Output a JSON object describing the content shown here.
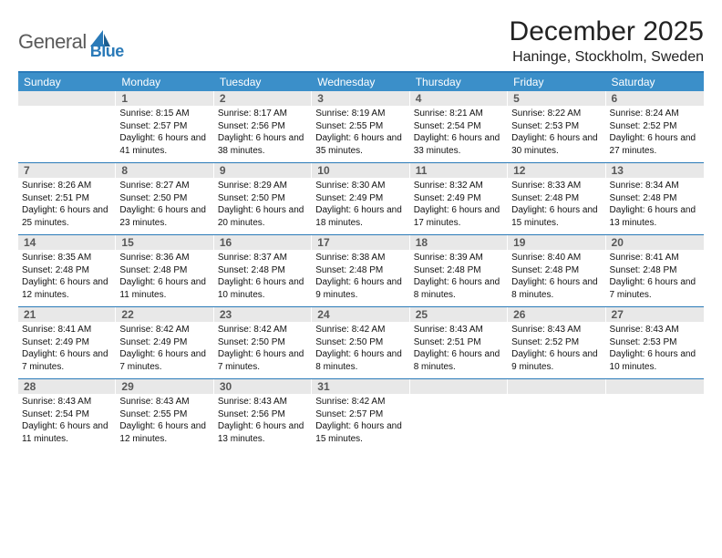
{
  "brand": {
    "general": "General",
    "blue": "Blue"
  },
  "title": "December 2025",
  "location": "Haninge, Stockholm, Sweden",
  "colors": {
    "header_bar": "#3b8fc9",
    "rule": "#2a7ab8",
    "daynum_bg": "#e8e8e8",
    "daynum_fg": "#585858",
    "text": "#111111",
    "background": "#ffffff"
  },
  "layout": {
    "columns": 7,
    "rows": 5,
    "start_day_index": 1
  },
  "daysOfWeek": [
    "Sunday",
    "Monday",
    "Tuesday",
    "Wednesday",
    "Thursday",
    "Friday",
    "Saturday"
  ],
  "weeks": [
    [
      {
        "n": "",
        "sunrise": "",
        "sunset": "",
        "daylight": ""
      },
      {
        "n": "1",
        "sunrise": "Sunrise: 8:15 AM",
        "sunset": "Sunset: 2:57 PM",
        "daylight": "Daylight: 6 hours and 41 minutes."
      },
      {
        "n": "2",
        "sunrise": "Sunrise: 8:17 AM",
        "sunset": "Sunset: 2:56 PM",
        "daylight": "Daylight: 6 hours and 38 minutes."
      },
      {
        "n": "3",
        "sunrise": "Sunrise: 8:19 AM",
        "sunset": "Sunset: 2:55 PM",
        "daylight": "Daylight: 6 hours and 35 minutes."
      },
      {
        "n": "4",
        "sunrise": "Sunrise: 8:21 AM",
        "sunset": "Sunset: 2:54 PM",
        "daylight": "Daylight: 6 hours and 33 minutes."
      },
      {
        "n": "5",
        "sunrise": "Sunrise: 8:22 AM",
        "sunset": "Sunset: 2:53 PM",
        "daylight": "Daylight: 6 hours and 30 minutes."
      },
      {
        "n": "6",
        "sunrise": "Sunrise: 8:24 AM",
        "sunset": "Sunset: 2:52 PM",
        "daylight": "Daylight: 6 hours and 27 minutes."
      }
    ],
    [
      {
        "n": "7",
        "sunrise": "Sunrise: 8:26 AM",
        "sunset": "Sunset: 2:51 PM",
        "daylight": "Daylight: 6 hours and 25 minutes."
      },
      {
        "n": "8",
        "sunrise": "Sunrise: 8:27 AM",
        "sunset": "Sunset: 2:50 PM",
        "daylight": "Daylight: 6 hours and 23 minutes."
      },
      {
        "n": "9",
        "sunrise": "Sunrise: 8:29 AM",
        "sunset": "Sunset: 2:50 PM",
        "daylight": "Daylight: 6 hours and 20 minutes."
      },
      {
        "n": "10",
        "sunrise": "Sunrise: 8:30 AM",
        "sunset": "Sunset: 2:49 PM",
        "daylight": "Daylight: 6 hours and 18 minutes."
      },
      {
        "n": "11",
        "sunrise": "Sunrise: 8:32 AM",
        "sunset": "Sunset: 2:49 PM",
        "daylight": "Daylight: 6 hours and 17 minutes."
      },
      {
        "n": "12",
        "sunrise": "Sunrise: 8:33 AM",
        "sunset": "Sunset: 2:48 PM",
        "daylight": "Daylight: 6 hours and 15 minutes."
      },
      {
        "n": "13",
        "sunrise": "Sunrise: 8:34 AM",
        "sunset": "Sunset: 2:48 PM",
        "daylight": "Daylight: 6 hours and 13 minutes."
      }
    ],
    [
      {
        "n": "14",
        "sunrise": "Sunrise: 8:35 AM",
        "sunset": "Sunset: 2:48 PM",
        "daylight": "Daylight: 6 hours and 12 minutes."
      },
      {
        "n": "15",
        "sunrise": "Sunrise: 8:36 AM",
        "sunset": "Sunset: 2:48 PM",
        "daylight": "Daylight: 6 hours and 11 minutes."
      },
      {
        "n": "16",
        "sunrise": "Sunrise: 8:37 AM",
        "sunset": "Sunset: 2:48 PM",
        "daylight": "Daylight: 6 hours and 10 minutes."
      },
      {
        "n": "17",
        "sunrise": "Sunrise: 8:38 AM",
        "sunset": "Sunset: 2:48 PM",
        "daylight": "Daylight: 6 hours and 9 minutes."
      },
      {
        "n": "18",
        "sunrise": "Sunrise: 8:39 AM",
        "sunset": "Sunset: 2:48 PM",
        "daylight": "Daylight: 6 hours and 8 minutes."
      },
      {
        "n": "19",
        "sunrise": "Sunrise: 8:40 AM",
        "sunset": "Sunset: 2:48 PM",
        "daylight": "Daylight: 6 hours and 8 minutes."
      },
      {
        "n": "20",
        "sunrise": "Sunrise: 8:41 AM",
        "sunset": "Sunset: 2:48 PM",
        "daylight": "Daylight: 6 hours and 7 minutes."
      }
    ],
    [
      {
        "n": "21",
        "sunrise": "Sunrise: 8:41 AM",
        "sunset": "Sunset: 2:49 PM",
        "daylight": "Daylight: 6 hours and 7 minutes."
      },
      {
        "n": "22",
        "sunrise": "Sunrise: 8:42 AM",
        "sunset": "Sunset: 2:49 PM",
        "daylight": "Daylight: 6 hours and 7 minutes."
      },
      {
        "n": "23",
        "sunrise": "Sunrise: 8:42 AM",
        "sunset": "Sunset: 2:50 PM",
        "daylight": "Daylight: 6 hours and 7 minutes."
      },
      {
        "n": "24",
        "sunrise": "Sunrise: 8:42 AM",
        "sunset": "Sunset: 2:50 PM",
        "daylight": "Daylight: 6 hours and 8 minutes."
      },
      {
        "n": "25",
        "sunrise": "Sunrise: 8:43 AM",
        "sunset": "Sunset: 2:51 PM",
        "daylight": "Daylight: 6 hours and 8 minutes."
      },
      {
        "n": "26",
        "sunrise": "Sunrise: 8:43 AM",
        "sunset": "Sunset: 2:52 PM",
        "daylight": "Daylight: 6 hours and 9 minutes."
      },
      {
        "n": "27",
        "sunrise": "Sunrise: 8:43 AM",
        "sunset": "Sunset: 2:53 PM",
        "daylight": "Daylight: 6 hours and 10 minutes."
      }
    ],
    [
      {
        "n": "28",
        "sunrise": "Sunrise: 8:43 AM",
        "sunset": "Sunset: 2:54 PM",
        "daylight": "Daylight: 6 hours and 11 minutes."
      },
      {
        "n": "29",
        "sunrise": "Sunrise: 8:43 AM",
        "sunset": "Sunset: 2:55 PM",
        "daylight": "Daylight: 6 hours and 12 minutes."
      },
      {
        "n": "30",
        "sunrise": "Sunrise: 8:43 AM",
        "sunset": "Sunset: 2:56 PM",
        "daylight": "Daylight: 6 hours and 13 minutes."
      },
      {
        "n": "31",
        "sunrise": "Sunrise: 8:42 AM",
        "sunset": "Sunset: 2:57 PM",
        "daylight": "Daylight: 6 hours and 15 minutes."
      },
      {
        "n": "",
        "sunrise": "",
        "sunset": "",
        "daylight": ""
      },
      {
        "n": "",
        "sunrise": "",
        "sunset": "",
        "daylight": ""
      },
      {
        "n": "",
        "sunrise": "",
        "sunset": "",
        "daylight": ""
      }
    ]
  ]
}
